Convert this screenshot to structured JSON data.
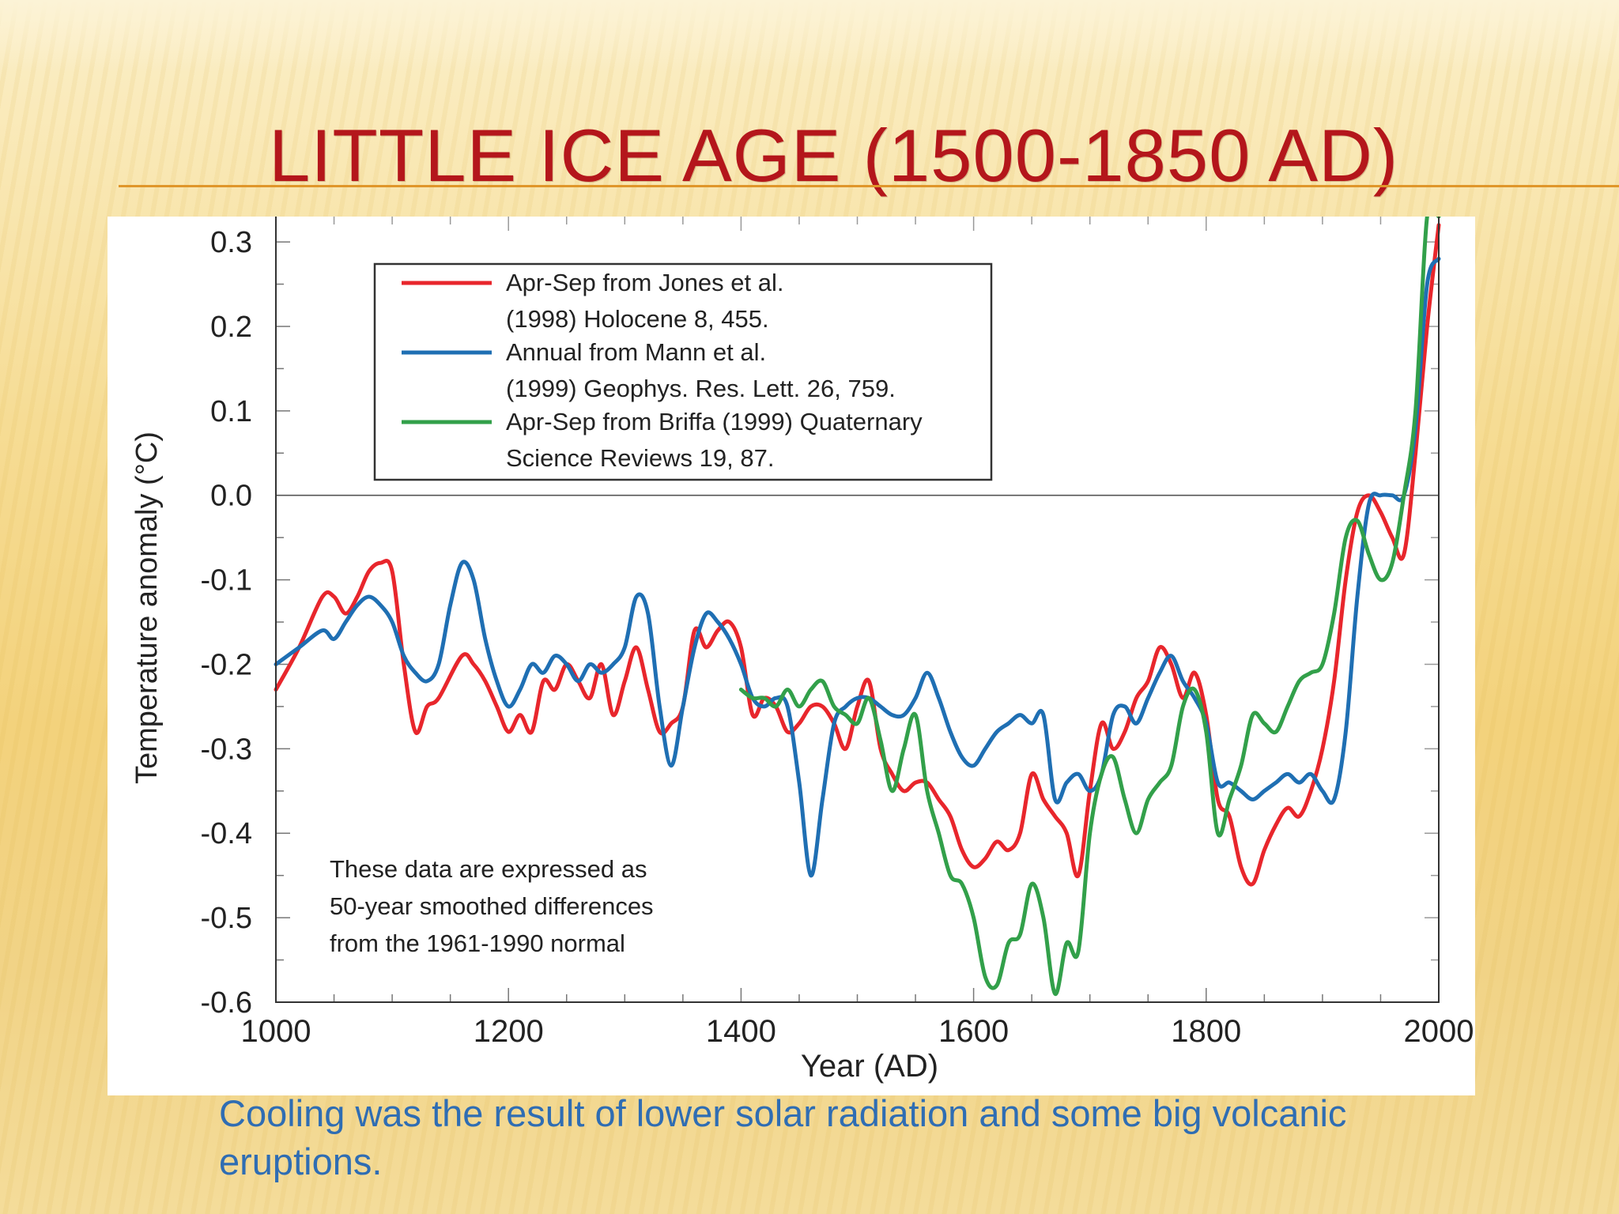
{
  "slide": {
    "title": "LITTLE ICE AGE (1500-1850 AD)",
    "caption": "Cooling was the result of lower solar radiation and some big volcanic eruptions.",
    "colors": {
      "title": "#b4161b",
      "caption": "#2f6db3",
      "rule": "#e0962a"
    }
  },
  "chart_data": {
    "type": "line",
    "xlabel": "Year (AD)",
    "ylabel": "Temperature anomaly (°C)",
    "xlim": [
      1000,
      2000
    ],
    "ylim": [
      -0.6,
      0.33
    ],
    "xticks": [
      1000,
      1200,
      1400,
      1600,
      1800,
      2000
    ],
    "yticks": [
      0.3,
      0.2,
      0.1,
      0.0,
      -0.1,
      -0.2,
      -0.3,
      -0.4,
      -0.5,
      -0.6
    ],
    "ytick_labels": [
      "0.3",
      "0.2",
      "0.1",
      "0.0",
      "-0.1",
      "-0.2",
      "-0.3",
      "-0.4",
      "-0.5",
      "-0.6"
    ],
    "zero_line": 0.0,
    "legend_placement": "top-left",
    "annotation": [
      "These data are expressed as",
      "50-year smoothed differences",
      "from the 1961-1990 normal"
    ],
    "series": [
      {
        "name": "Apr-Sep from Jones et al. (1998) Holocene 8, 455.",
        "legend_lines": [
          "Apr-Sep from Jones et al.",
          "(1998) Holocene 8, 455."
        ],
        "color": "#e8262c",
        "x": [
          1000,
          1020,
          1040,
          1050,
          1060,
          1070,
          1080,
          1090,
          1100,
          1110,
          1120,
          1130,
          1140,
          1160,
          1170,
          1180,
          1190,
          1200,
          1210,
          1220,
          1230,
          1240,
          1250,
          1260,
          1270,
          1280,
          1290,
          1300,
          1310,
          1320,
          1330,
          1340,
          1350,
          1360,
          1370,
          1380,
          1390,
          1400,
          1410,
          1420,
          1430,
          1440,
          1450,
          1460,
          1470,
          1480,
          1490,
          1500,
          1510,
          1520,
          1530,
          1540,
          1550,
          1560,
          1570,
          1580,
          1590,
          1600,
          1610,
          1620,
          1630,
          1640,
          1650,
          1660,
          1670,
          1680,
          1690,
          1700,
          1710,
          1720,
          1730,
          1740,
          1750,
          1760,
          1770,
          1780,
          1790,
          1800,
          1810,
          1820,
          1830,
          1840,
          1850,
          1860,
          1870,
          1880,
          1890,
          1900,
          1910,
          1920,
          1930,
          1940,
          1950,
          1960,
          1970,
          1980,
          1990,
          2000
        ],
        "values": [
          -0.23,
          -0.18,
          -0.12,
          -0.12,
          -0.14,
          -0.12,
          -0.09,
          -0.08,
          -0.09,
          -0.2,
          -0.28,
          -0.25,
          -0.24,
          -0.19,
          -0.2,
          -0.22,
          -0.25,
          -0.28,
          -0.26,
          -0.28,
          -0.22,
          -0.23,
          -0.2,
          -0.22,
          -0.24,
          -0.2,
          -0.26,
          -0.22,
          -0.18,
          -0.23,
          -0.28,
          -0.27,
          -0.25,
          -0.16,
          -0.18,
          -0.16,
          -0.15,
          -0.18,
          -0.26,
          -0.24,
          -0.25,
          -0.28,
          -0.27,
          -0.25,
          -0.25,
          -0.27,
          -0.3,
          -0.25,
          -0.22,
          -0.3,
          -0.33,
          -0.35,
          -0.34,
          -0.34,
          -0.36,
          -0.38,
          -0.42,
          -0.44,
          -0.43,
          -0.41,
          -0.42,
          -0.4,
          -0.33,
          -0.36,
          -0.38,
          -0.4,
          -0.45,
          -0.35,
          -0.27,
          -0.3,
          -0.28,
          -0.24,
          -0.22,
          -0.18,
          -0.2,
          -0.24,
          -0.21,
          -0.26,
          -0.36,
          -0.38,
          -0.44,
          -0.46,
          -0.42,
          -0.39,
          -0.37,
          -0.38,
          -0.35,
          -0.3,
          -0.22,
          -0.1,
          -0.02,
          0.0,
          -0.02,
          -0.05,
          -0.07,
          0.05,
          0.2,
          0.32
        ]
      },
      {
        "name": "Annual from Mann et al. (1999) Geophys. Res. Lett. 26, 759.",
        "legend_lines": [
          "Annual from Mann et al.",
          "(1999) Geophys. Res. Lett. 26, 759."
        ],
        "color": "#1f6fb3",
        "x": [
          1000,
          1020,
          1040,
          1050,
          1060,
          1070,
          1080,
          1090,
          1100,
          1110,
          1120,
          1130,
          1140,
          1150,
          1160,
          1170,
          1180,
          1190,
          1200,
          1210,
          1220,
          1230,
          1240,
          1250,
          1260,
          1270,
          1280,
          1290,
          1300,
          1310,
          1320,
          1330,
          1340,
          1350,
          1360,
          1370,
          1380,
          1390,
          1400,
          1410,
          1420,
          1430,
          1440,
          1450,
          1460,
          1470,
          1480,
          1490,
          1500,
          1510,
          1520,
          1530,
          1540,
          1550,
          1560,
          1570,
          1580,
          1590,
          1600,
          1610,
          1620,
          1630,
          1640,
          1650,
          1660,
          1670,
          1680,
          1690,
          1700,
          1710,
          1720,
          1730,
          1740,
          1750,
          1760,
          1770,
          1780,
          1790,
          1800,
          1810,
          1820,
          1830,
          1840,
          1850,
          1860,
          1870,
          1880,
          1890,
          1900,
          1910,
          1920,
          1930,
          1940,
          1950,
          1960,
          1970,
          1980,
          1990,
          2000
        ],
        "values": [
          -0.2,
          -0.18,
          -0.16,
          -0.17,
          -0.15,
          -0.13,
          -0.12,
          -0.13,
          -0.15,
          -0.19,
          -0.21,
          -0.22,
          -0.2,
          -0.13,
          -0.08,
          -0.1,
          -0.17,
          -0.22,
          -0.25,
          -0.23,
          -0.2,
          -0.21,
          -0.19,
          -0.2,
          -0.22,
          -0.2,
          -0.21,
          -0.2,
          -0.18,
          -0.12,
          -0.14,
          -0.25,
          -0.32,
          -0.25,
          -0.18,
          -0.14,
          -0.15,
          -0.17,
          -0.2,
          -0.24,
          -0.25,
          -0.24,
          -0.25,
          -0.34,
          -0.45,
          -0.36,
          -0.27,
          -0.25,
          -0.24,
          -0.24,
          -0.25,
          -0.26,
          -0.26,
          -0.24,
          -0.21,
          -0.24,
          -0.28,
          -0.31,
          -0.32,
          -0.3,
          -0.28,
          -0.27,
          -0.26,
          -0.27,
          -0.26,
          -0.36,
          -0.34,
          -0.33,
          -0.35,
          -0.33,
          -0.26,
          -0.25,
          -0.27,
          -0.24,
          -0.21,
          -0.19,
          -0.22,
          -0.24,
          -0.27,
          -0.34,
          -0.34,
          -0.35,
          -0.36,
          -0.35,
          -0.34,
          -0.33,
          -0.34,
          -0.33,
          -0.35,
          -0.36,
          -0.28,
          -0.12,
          -0.01,
          0.0,
          0.0,
          0.0,
          0.08,
          0.25,
          0.28
        ]
      },
      {
        "name": "Apr-Sep from Briffa (1999) Quaternary Science Reviews 19, 87.",
        "legend_lines": [
          "Apr-Sep from Briffa (1999) Quaternary",
          "Science Reviews 19, 87."
        ],
        "color": "#32a04a",
        "x": [
          1400,
          1410,
          1420,
          1430,
          1440,
          1450,
          1460,
          1470,
          1480,
          1490,
          1500,
          1510,
          1520,
          1530,
          1540,
          1550,
          1560,
          1570,
          1580,
          1590,
          1600,
          1610,
          1620,
          1630,
          1640,
          1650,
          1660,
          1670,
          1680,
          1690,
          1700,
          1710,
          1720,
          1730,
          1740,
          1750,
          1760,
          1770,
          1780,
          1790,
          1800,
          1810,
          1820,
          1830,
          1840,
          1850,
          1860,
          1870,
          1880,
          1890,
          1900,
          1910,
          1920,
          1930,
          1940,
          1950,
          1960,
          1970,
          1980,
          1990,
          2000
        ],
        "values": [
          -0.23,
          -0.24,
          -0.24,
          -0.25,
          -0.23,
          -0.25,
          -0.23,
          -0.22,
          -0.25,
          -0.26,
          -0.27,
          -0.24,
          -0.29,
          -0.35,
          -0.3,
          -0.26,
          -0.35,
          -0.4,
          -0.45,
          -0.46,
          -0.5,
          -0.57,
          -0.58,
          -0.53,
          -0.52,
          -0.46,
          -0.5,
          -0.59,
          -0.53,
          -0.54,
          -0.4,
          -0.33,
          -0.31,
          -0.36,
          -0.4,
          -0.36,
          -0.34,
          -0.32,
          -0.25,
          -0.23,
          -0.28,
          -0.4,
          -0.36,
          -0.32,
          -0.26,
          -0.27,
          -0.28,
          -0.25,
          -0.22,
          -0.21,
          -0.2,
          -0.14,
          -0.05,
          -0.03,
          -0.07,
          -0.1,
          -0.08,
          0.0,
          0.1,
          0.33,
          0.33
        ]
      }
    ]
  }
}
